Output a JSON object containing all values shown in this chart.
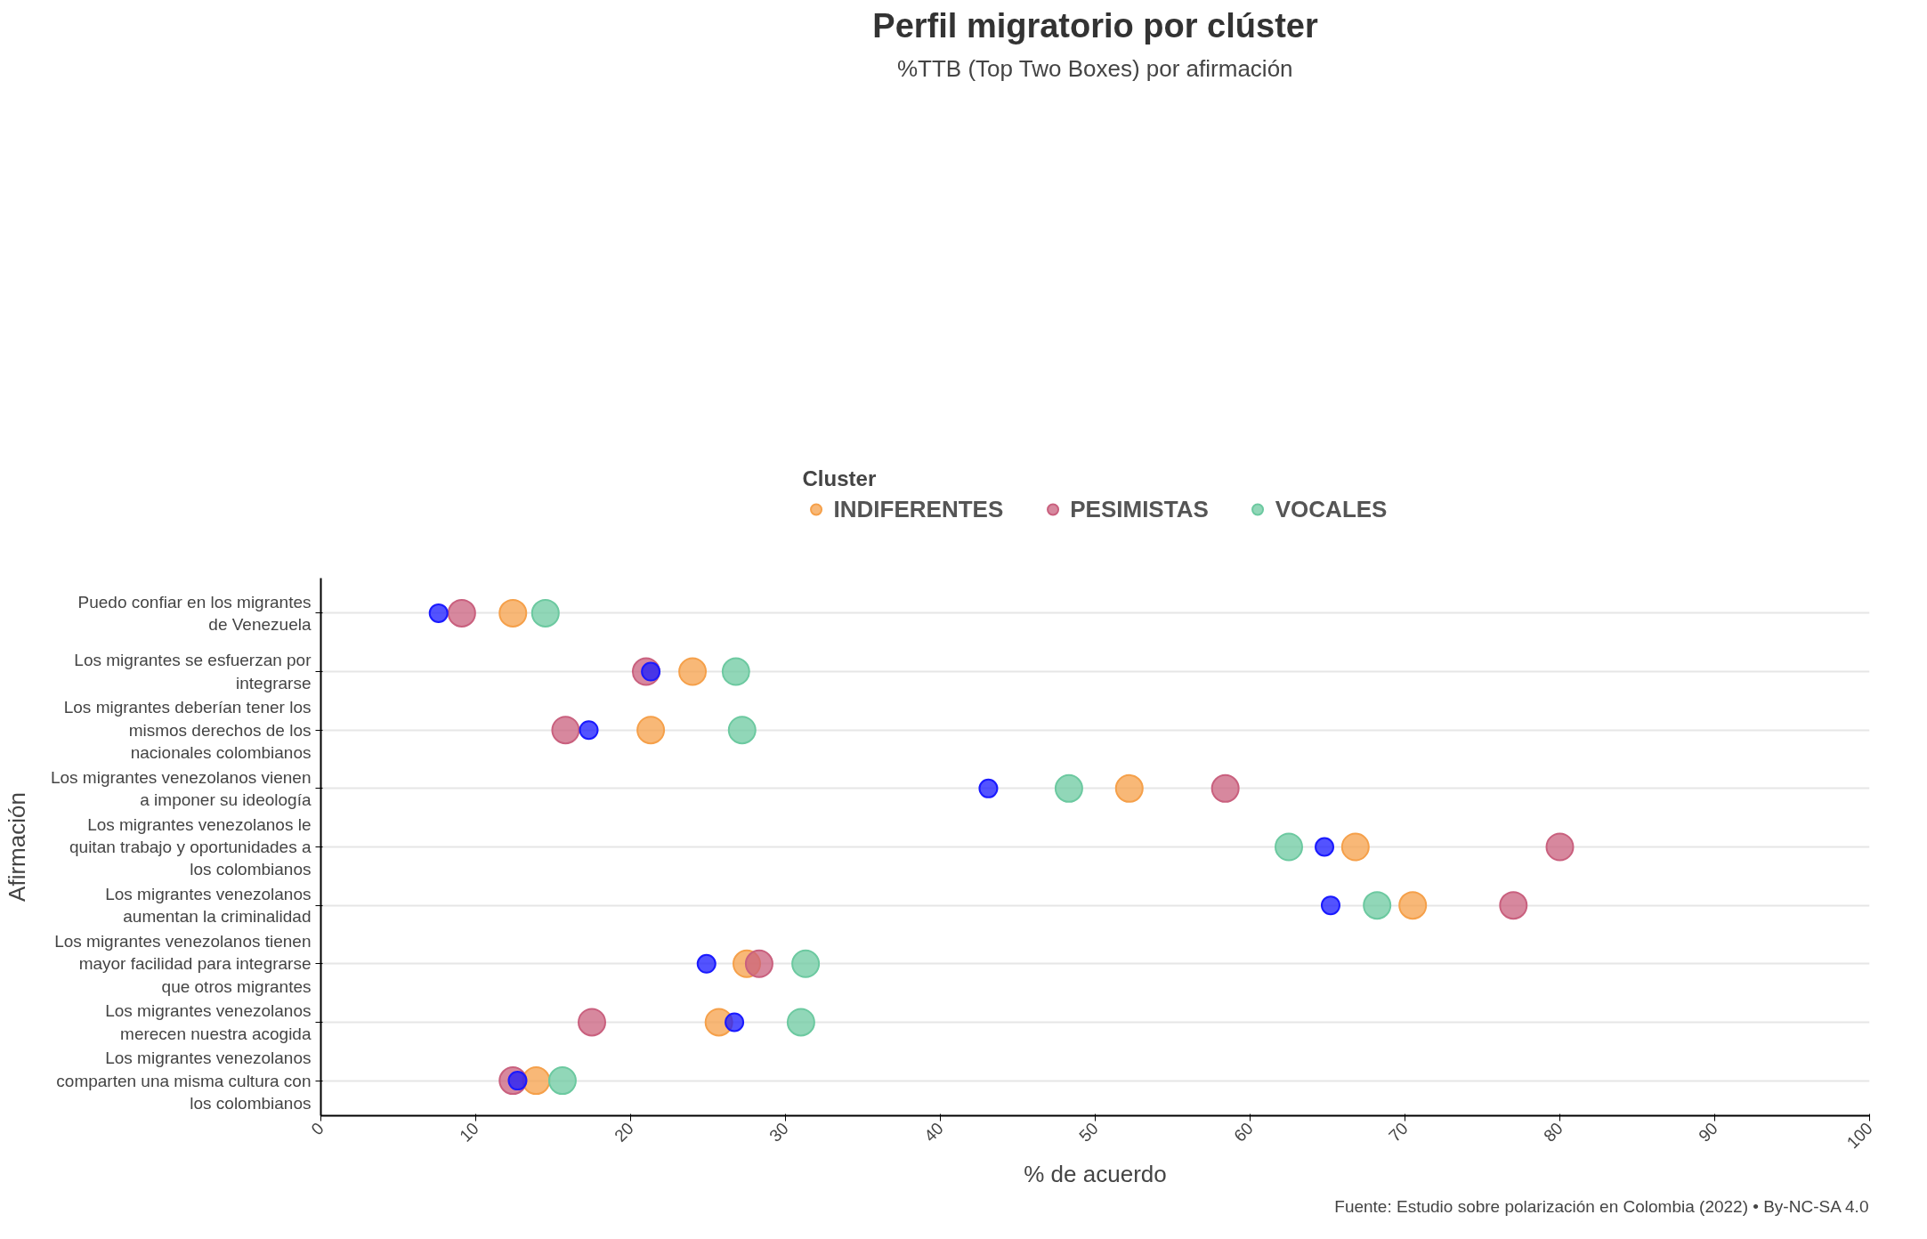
{
  "chart_data": {
    "type": "scatter",
    "title": "Perfil migratorio por clúster",
    "subtitle": "%TTB (Top Two Boxes) por afirmación",
    "xlabel": "% de acuerdo",
    "ylabel": "Afirmación",
    "legend_title": "Cluster",
    "legend": "top",
    "grid": "y",
    "marker": "circle",
    "orientation": "horizontal",
    "categories": [
      "Puedo confiar en los migrantes de Venezuela",
      "Los migrantes se esfuerzan por integrarse",
      "Los migrantes deberían tener los mismos derechos de los nacionales colombianos",
      "Los migrantes venezolanos vienen a imponer su ideología",
      "Los migrantes venezolanos le quitan trabajo y oportunidades a los colombianos",
      "Los migrantes venezolanos aumentan la criminalidad",
      "Los migrantes venezolanos tienen mayor facilidad para integrarse que otros migrantes",
      "Los migrantes venezolanos merecen nuestra acogida",
      "Los migrantes venezolanos comparten una misma cultura con los colombianos"
    ],
    "xlim": [
      0,
      100
    ],
    "xticks": [
      0,
      10,
      20,
      30,
      40,
      50,
      60,
      70,
      80,
      90,
      100
    ],
    "series": [
      {
        "color": "#1a1aff",
        "values": [
          7.6,
          21.3,
          17.3,
          43.1,
          64.8,
          65.2,
          24.9,
          26.7,
          12.7
        ]
      },
      {
        "name": "INDIFERENTES",
        "color": "#f5a04a",
        "values": [
          12.4,
          24.0,
          21.3,
          52.2,
          66.8,
          70.5,
          27.5,
          25.7,
          13.9
        ]
      },
      {
        "name": "PESIMISTAS",
        "color": "#c9607e",
        "values": [
          9.1,
          21.0,
          15.8,
          58.4,
          80.0,
          77.0,
          28.3,
          17.5,
          12.4
        ]
      },
      {
        "name": "VOCALES",
        "color": "#6cc9a0",
        "values": [
          14.5,
          26.8,
          27.2,
          48.3,
          62.5,
          68.2,
          31.3,
          31.0,
          15.6
        ]
      }
    ],
    "annotations": [
      "Fuente: Estudio sobre polarización en Colombia (2022) • By-NC-SA 4.0"
    ]
  }
}
